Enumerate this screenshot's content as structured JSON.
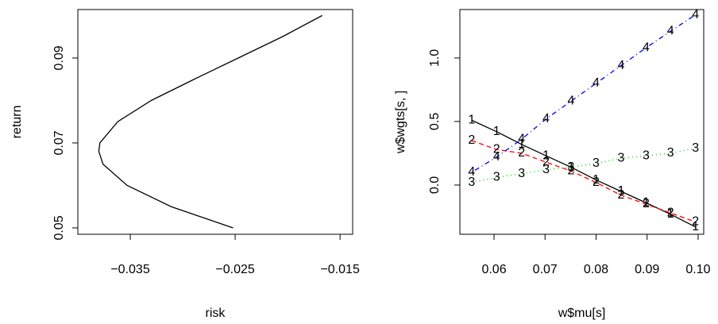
{
  "chart_data": [
    {
      "type": "line",
      "xlabel": "risk",
      "ylabel": "return",
      "color": "#000000",
      "x": [
        -0.0252,
        -0.0311,
        -0.0353,
        -0.0376,
        -0.038,
        -0.0379,
        -0.0362,
        -0.033,
        -0.0289,
        -0.0247,
        -0.0205,
        -0.0167
      ],
      "values": [
        0.05,
        0.055,
        0.06,
        0.065,
        0.068,
        0.07,
        0.075,
        0.08,
        0.085,
        0.09,
        0.095,
        0.1
      ],
      "xlim": [
        -0.04,
        -0.0138
      ],
      "ylim": [
        0.0485,
        0.1014
      ],
      "xticks": [
        {
          "value": -0.035,
          "label": "−0.035"
        },
        {
          "value": -0.025,
          "label": "−0.025"
        },
        {
          "value": -0.015,
          "label": "−0.015"
        }
      ],
      "yticks": [
        0.05,
        0.07,
        0.09
      ]
    },
    {
      "type": "line",
      "xlabel": "w$mu[s]",
      "ylabel": "w$wgts[s, ]",
      "x": [
        0.0556,
        0.0605,
        0.0654,
        0.0702,
        0.0751,
        0.08,
        0.0849,
        0.0898,
        0.0946,
        0.0995
      ],
      "series": [
        {
          "name": "1",
          "color": "#000000",
          "linestyle": "solid",
          "values": [
            0.51,
            0.42,
            0.32,
            0.23,
            0.14,
            0.04,
            -0.05,
            -0.14,
            -0.23,
            -0.33
          ]
        },
        {
          "name": "2",
          "color": "#ff0000",
          "linestyle": "dashed",
          "values": [
            0.35,
            0.28,
            0.25,
            0.18,
            0.11,
            0.02,
            -0.08,
            -0.15,
            -0.22,
            -0.29
          ]
        },
        {
          "name": "3",
          "color": "#00cd00",
          "linestyle": "dotted",
          "values": [
            0.02,
            0.06,
            0.09,
            0.12,
            0.14,
            0.17,
            0.21,
            0.23,
            0.25,
            0.29
          ]
        },
        {
          "name": "4",
          "color": "#0000ff",
          "linestyle": "dotdash",
          "values": [
            0.1,
            0.22,
            0.36,
            0.52,
            0.66,
            0.8,
            0.94,
            1.08,
            1.21,
            1.34
          ]
        }
      ],
      "xlim": [
        0.0533,
        0.1011
      ],
      "ylim": [
        -0.3875,
        1.381
      ],
      "xticks": [
        0.06,
        0.07,
        0.08,
        0.09,
        {
          "value": 0.1,
          "label": "0.10"
        }
      ],
      "yticks": [
        {
          "value": 0,
          "label": "0.0"
        },
        {
          "value": 0.5,
          "label": "0.5"
        },
        {
          "value": 1,
          "label": "1.0"
        }
      ]
    }
  ]
}
